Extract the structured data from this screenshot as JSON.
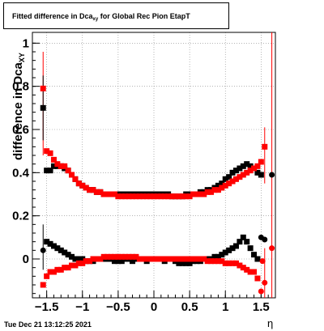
{
  "title": {
    "prefix": "Fitted difference in Dca",
    "sub": "xy",
    "suffix": " for Global Rec Pion EtapT"
  },
  "ylabel": {
    "text": "difference in Dca",
    "sub": "XY"
  },
  "xlabel": "η",
  "timestamp": "Tue Dec 21 13:12:25 2021",
  "colors": {
    "black_series": "#000000",
    "red_series": "#ff0000",
    "axis": "#000000",
    "grid": "#888888"
  },
  "chart_data": {
    "type": "scatter",
    "xlim": [
      -1.7,
      1.7
    ],
    "ylim": [
      -0.18,
      1.05
    ],
    "grid": true,
    "x_ticks": [
      -1.5,
      -1,
      -0.5,
      0,
      0.5,
      1,
      1.5
    ],
    "x_tick_labels": [
      "−1.5",
      "−1",
      "−0.5",
      "0",
      "0.5",
      "1",
      "1.5"
    ],
    "y_ticks": [
      0,
      0.2,
      0.4,
      0.6,
      0.8,
      1
    ],
    "y_tick_labels": [
      "0",
      "0.2",
      "0.4",
      "0.6",
      "0.8",
      "1"
    ],
    "series": [
      {
        "marker": "square",
        "color": "black",
        "points": [
          [
            -1.55,
            0.7
          ],
          [
            -1.5,
            0.41
          ],
          [
            -1.45,
            0.41
          ],
          [
            -1.4,
            0.43
          ],
          [
            -1.35,
            0.43
          ],
          [
            -1.3,
            0.43
          ],
          [
            -1.25,
            0.42
          ],
          [
            -1.2,
            0.41
          ],
          [
            -1.15,
            0.39
          ],
          [
            -1.1,
            0.37
          ],
          [
            -1.05,
            0.35
          ],
          [
            -1.0,
            0.34
          ],
          [
            -0.95,
            0.33
          ],
          [
            -0.9,
            0.32
          ],
          [
            -0.85,
            0.32
          ],
          [
            -0.8,
            0.31
          ],
          [
            -0.75,
            0.31
          ],
          [
            -0.7,
            0.3
          ],
          [
            -0.65,
            0.3
          ],
          [
            -0.6,
            0.3
          ],
          [
            -0.55,
            0.3
          ],
          [
            -0.5,
            0.3
          ],
          [
            -0.45,
            0.3
          ],
          [
            -0.4,
            0.3
          ],
          [
            -0.35,
            0.3
          ],
          [
            -0.3,
            0.3
          ],
          [
            -0.25,
            0.3
          ],
          [
            -0.2,
            0.3
          ],
          [
            -0.15,
            0.3
          ],
          [
            -0.1,
            0.3
          ],
          [
            -0.05,
            0.3
          ],
          [
            0.0,
            0.3
          ],
          [
            0.05,
            0.3
          ],
          [
            0.1,
            0.3
          ],
          [
            0.15,
            0.3
          ],
          [
            0.2,
            0.3
          ],
          [
            0.25,
            0.29
          ],
          [
            0.3,
            0.29
          ],
          [
            0.35,
            0.29
          ],
          [
            0.4,
            0.29
          ],
          [
            0.45,
            0.3
          ],
          [
            0.5,
            0.3
          ],
          [
            0.55,
            0.3
          ],
          [
            0.6,
            0.3
          ],
          [
            0.65,
            0.31
          ],
          [
            0.7,
            0.31
          ],
          [
            0.75,
            0.32
          ],
          [
            0.8,
            0.32
          ],
          [
            0.85,
            0.33
          ],
          [
            0.9,
            0.34
          ],
          [
            0.95,
            0.35
          ],
          [
            1.0,
            0.37
          ],
          [
            1.05,
            0.38
          ],
          [
            1.1,
            0.4
          ],
          [
            1.15,
            0.41
          ],
          [
            1.2,
            0.42
          ],
          [
            1.25,
            0.43
          ],
          [
            1.3,
            0.44
          ],
          [
            1.35,
            0.43
          ],
          [
            1.4,
            0.42
          ],
          [
            1.45,
            0.4
          ],
          [
            1.5,
            0.39
          ],
          [
            1.65,
            0.39
          ],
          [
            -1.55,
            0.04
          ],
          [
            -1.5,
            0.08
          ],
          [
            -1.45,
            0.07
          ],
          [
            -1.4,
            0.06
          ],
          [
            -1.35,
            0.05
          ],
          [
            -1.3,
            0.04
          ],
          [
            -1.25,
            0.03
          ],
          [
            -1.2,
            0.02
          ],
          [
            -1.15,
            0.01
          ],
          [
            -1.1,
            0.0
          ],
          [
            -1.05,
            0.0
          ],
          [
            -1.0,
            0.0
          ],
          [
            -0.95,
            -0.01
          ],
          [
            -0.9,
            -0.01
          ],
          [
            -0.85,
            -0.01
          ],
          [
            -0.8,
            0.0
          ],
          [
            -0.75,
            0.0
          ],
          [
            -0.7,
            0.0
          ],
          [
            -0.65,
            0.0
          ],
          [
            -0.6,
            0.0
          ],
          [
            -0.55,
            -0.01
          ],
          [
            -0.5,
            -0.01
          ],
          [
            -0.45,
            -0.01
          ],
          [
            -0.4,
            0.0
          ],
          [
            -0.35,
            0.0
          ],
          [
            -0.3,
            -0.01
          ],
          [
            -0.25,
            0.0
          ],
          [
            -0.2,
            0.0
          ],
          [
            -0.15,
            0.0
          ],
          [
            -0.1,
            -0.01
          ],
          [
            -0.05,
            0.0
          ],
          [
            0.0,
            0.0
          ],
          [
            0.05,
            0.0
          ],
          [
            0.1,
            0.0
          ],
          [
            0.15,
            -0.01
          ],
          [
            0.2,
            0.0
          ],
          [
            0.25,
            0.0
          ],
          [
            0.3,
            -0.01
          ],
          [
            0.35,
            -0.02
          ],
          [
            0.4,
            -0.02
          ],
          [
            0.45,
            -0.02
          ],
          [
            0.5,
            -0.02
          ],
          [
            0.55,
            -0.01
          ],
          [
            0.6,
            -0.01
          ],
          [
            0.65,
            -0.01
          ],
          [
            0.7,
            0.0
          ],
          [
            0.75,
            0.0
          ],
          [
            0.8,
            0.0
          ],
          [
            0.85,
            0.01
          ],
          [
            0.9,
            0.01
          ],
          [
            0.95,
            0.02
          ],
          [
            1.0,
            0.03
          ],
          [
            1.05,
            0.04
          ],
          [
            1.1,
            0.05
          ],
          [
            1.15,
            0.06
          ],
          [
            1.2,
            0.08
          ],
          [
            1.25,
            0.1
          ],
          [
            1.3,
            0.08
          ],
          [
            1.35,
            0.05
          ],
          [
            1.4,
            0.02
          ],
          [
            1.45,
            0.0
          ],
          [
            1.5,
            0.1
          ],
          [
            1.55,
            0.09
          ]
        ]
      },
      {
        "marker": "square",
        "color": "red",
        "points": [
          [
            -1.55,
            0.79
          ],
          [
            -1.5,
            0.5
          ],
          [
            -1.45,
            0.49
          ],
          [
            -1.4,
            0.46
          ],
          [
            -1.35,
            0.44
          ],
          [
            -1.3,
            0.43
          ],
          [
            -1.25,
            0.43
          ],
          [
            -1.2,
            0.41
          ],
          [
            -1.15,
            0.39
          ],
          [
            -1.1,
            0.37
          ],
          [
            -1.05,
            0.35
          ],
          [
            -1.0,
            0.34
          ],
          [
            -0.95,
            0.33
          ],
          [
            -0.9,
            0.32
          ],
          [
            -0.85,
            0.32
          ],
          [
            -0.8,
            0.31
          ],
          [
            -0.75,
            0.31
          ],
          [
            -0.7,
            0.3
          ],
          [
            -0.65,
            0.3
          ],
          [
            -0.6,
            0.3
          ],
          [
            -0.55,
            0.3
          ],
          [
            -0.5,
            0.29
          ],
          [
            -0.45,
            0.29
          ],
          [
            -0.4,
            0.29
          ],
          [
            -0.35,
            0.29
          ],
          [
            -0.3,
            0.29
          ],
          [
            -0.25,
            0.29
          ],
          [
            -0.2,
            0.29
          ],
          [
            -0.15,
            0.29
          ],
          [
            -0.1,
            0.29
          ],
          [
            -0.05,
            0.29
          ],
          [
            0.0,
            0.29
          ],
          [
            0.05,
            0.29
          ],
          [
            0.1,
            0.29
          ],
          [
            0.15,
            0.29
          ],
          [
            0.2,
            0.29
          ],
          [
            0.25,
            0.29
          ],
          [
            0.3,
            0.29
          ],
          [
            0.35,
            0.29
          ],
          [
            0.4,
            0.29
          ],
          [
            0.45,
            0.29
          ],
          [
            0.5,
            0.29
          ],
          [
            0.55,
            0.3
          ],
          [
            0.6,
            0.3
          ],
          [
            0.65,
            0.3
          ],
          [
            0.7,
            0.3
          ],
          [
            0.75,
            0.31
          ],
          [
            0.8,
            0.31
          ],
          [
            0.85,
            0.32
          ],
          [
            0.9,
            0.32
          ],
          [
            0.95,
            0.33
          ],
          [
            1.0,
            0.34
          ],
          [
            1.05,
            0.35
          ],
          [
            1.1,
            0.36
          ],
          [
            1.15,
            0.37
          ],
          [
            1.2,
            0.38
          ],
          [
            1.25,
            0.39
          ],
          [
            1.3,
            0.4
          ],
          [
            1.35,
            0.41
          ],
          [
            1.4,
            0.42
          ],
          [
            1.45,
            0.43
          ],
          [
            1.5,
            0.45
          ],
          [
            1.55,
            0.52
          ],
          [
            -1.55,
            -0.12
          ],
          [
            -1.5,
            -0.08
          ],
          [
            -1.45,
            -0.06
          ],
          [
            -1.4,
            -0.06
          ],
          [
            -1.35,
            -0.05
          ],
          [
            -1.3,
            -0.05
          ],
          [
            -1.25,
            -0.04
          ],
          [
            -1.2,
            -0.04
          ],
          [
            -1.15,
            -0.03
          ],
          [
            -1.1,
            -0.03
          ],
          [
            -1.05,
            -0.02
          ],
          [
            -1.0,
            -0.02
          ],
          [
            -0.95,
            -0.01
          ],
          [
            -0.9,
            -0.01
          ],
          [
            -0.85,
            0.0
          ],
          [
            -0.8,
            0.0
          ],
          [
            -0.75,
            0.0
          ],
          [
            -0.7,
            0.01
          ],
          [
            -0.65,
            0.01
          ],
          [
            -0.6,
            0.01
          ],
          [
            -0.55,
            0.01
          ],
          [
            -0.5,
            0.01
          ],
          [
            -0.45,
            0.01
          ],
          [
            -0.4,
            0.01
          ],
          [
            -0.35,
            0.01
          ],
          [
            -0.3,
            0.01
          ],
          [
            -0.25,
            0.01
          ],
          [
            -0.2,
            0.0
          ],
          [
            -0.15,
            0.0
          ],
          [
            -0.1,
            0.0
          ],
          [
            -0.05,
            0.0
          ],
          [
            0.0,
            0.0
          ],
          [
            0.05,
            0.0
          ],
          [
            0.1,
            0.0
          ],
          [
            0.15,
            0.0
          ],
          [
            0.2,
            0.0
          ],
          [
            0.25,
            0.0
          ],
          [
            0.3,
            0.0
          ],
          [
            0.35,
            0.0
          ],
          [
            0.4,
            0.0
          ],
          [
            0.45,
            0.0
          ],
          [
            0.5,
            0.0
          ],
          [
            0.55,
            0.0
          ],
          [
            0.6,
            0.0
          ],
          [
            0.65,
            0.0
          ],
          [
            0.7,
            0.0
          ],
          [
            0.75,
            -0.01
          ],
          [
            0.8,
            -0.01
          ],
          [
            0.85,
            -0.01
          ],
          [
            0.9,
            -0.01
          ],
          [
            0.95,
            -0.01
          ],
          [
            1.0,
            -0.02
          ],
          [
            1.05,
            -0.02
          ],
          [
            1.1,
            -0.02
          ],
          [
            1.15,
            -0.02
          ],
          [
            1.2,
            -0.03
          ],
          [
            1.25,
            -0.04
          ],
          [
            1.3,
            -0.05
          ],
          [
            1.35,
            -0.06
          ],
          [
            1.4,
            -0.06
          ],
          [
            1.45,
            -0.09
          ],
          [
            1.5,
            -0.15
          ],
          [
            1.55,
            -0.11
          ],
          [
            1.65,
            0.05
          ],
          [
            1.52,
            -0.01
          ]
        ]
      }
    ],
    "error_bars": [
      {
        "color": "red",
        "x": -1.55,
        "y": 0.79,
        "low": 0.48,
        "high": 0.96
      },
      {
        "color": "black",
        "x": -1.55,
        "y": 0.7,
        "low": 0.55,
        "high": 0.85
      },
      {
        "color": "black",
        "x": -1.55,
        "y": 0.04,
        "low": -0.05,
        "high": 0.16
      },
      {
        "color": "red",
        "x": 1.55,
        "y": 0.52,
        "low": 0.35,
        "high": 0.61
      },
      {
        "color": "red",
        "x": 1.65,
        "y": 0.05,
        "low": -0.18,
        "high": 1.05
      },
      {
        "color": "red",
        "x": 1.55,
        "y": -0.11,
        "low": -0.18,
        "high": 0.05
      }
    ]
  }
}
